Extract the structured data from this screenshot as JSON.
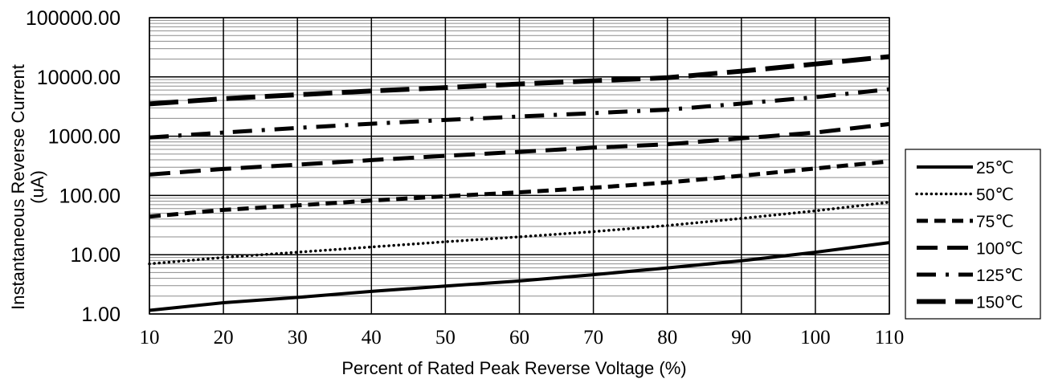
{
  "chart_data": {
    "type": "line",
    "title": "",
    "xlabel": "Percent of  Rated Peak Reverse Voltage (%)",
    "ylabel_line1": "Instantaneous Reverse Current",
    "ylabel_line2": "(uA)",
    "xlim": [
      10,
      110
    ],
    "ylim": [
      1,
      100000
    ],
    "y_scale": "log",
    "grid": true,
    "legend_position": "right",
    "x_ticks": [
      10,
      20,
      30,
      40,
      50,
      60,
      70,
      80,
      90,
      100,
      110
    ],
    "x_tick_labels": [
      "10",
      "20",
      "30",
      "40",
      "50",
      "60",
      "70",
      "80",
      "90",
      "100",
      "110"
    ],
    "y_ticks": [
      1,
      10,
      100,
      1000,
      10000,
      100000
    ],
    "y_tick_labels": [
      "1.00",
      "10.00",
      "100.00",
      "1000.00",
      "10000.00",
      "100000.00"
    ],
    "x": [
      10,
      20,
      30,
      40,
      50,
      60,
      70,
      80,
      90,
      100,
      110
    ],
    "series": [
      {
        "name": "25℃",
        "style": "solid",
        "values": [
          1.15,
          1.55,
          1.9,
          2.4,
          2.95,
          3.6,
          4.6,
          6.0,
          7.9,
          11.0,
          16.0
        ]
      },
      {
        "name": "50℃",
        "style": "dotted",
        "values": [
          7.0,
          9.0,
          11.0,
          13.5,
          16.5,
          20.0,
          24.5,
          31.0,
          41.0,
          55.0,
          77.0
        ]
      },
      {
        "name": "75℃",
        "style": "dashed",
        "values": [
          44,
          57,
          68,
          82,
          97,
          113,
          135,
          165,
          215,
          285,
          375
        ]
      },
      {
        "name": "100℃",
        "style": "long-dash",
        "values": [
          225,
          280,
          330,
          395,
          465,
          545,
          640,
          730,
          920,
          1150,
          1600
        ]
      },
      {
        "name": "125℃",
        "style": "dash-dot",
        "values": [
          950,
          1150,
          1380,
          1620,
          1880,
          2150,
          2450,
          2800,
          3550,
          4550,
          6200
        ]
      },
      {
        "name": "150℃",
        "style": "long-dash-heavy",
        "values": [
          3500,
          4300,
          5000,
          5800,
          6600,
          7600,
          8600,
          9700,
          12500,
          16500,
          22000
        ]
      }
    ]
  }
}
